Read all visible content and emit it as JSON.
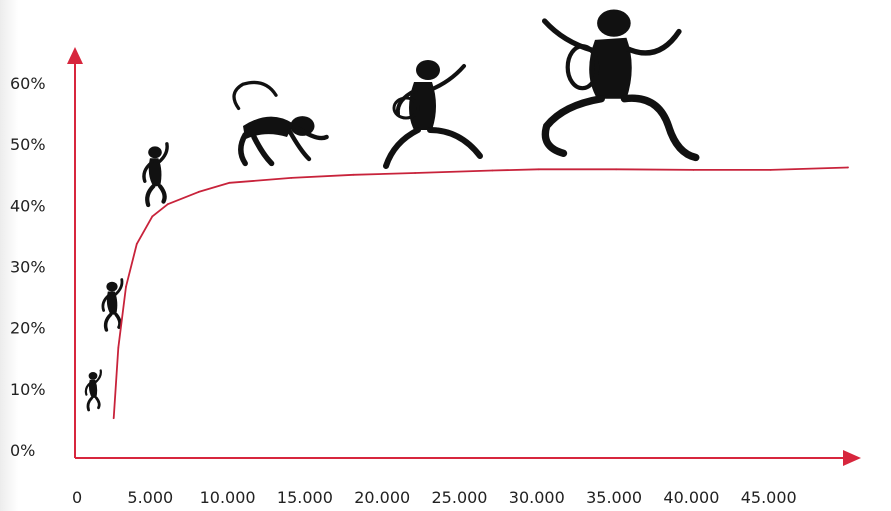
{
  "colors": {
    "axis": "#d7263d",
    "line": "#c8233b",
    "figures": "#111111",
    "text": "#222222"
  },
  "chart_data": {
    "type": "line",
    "title": "",
    "xlabel": "",
    "ylabel": "",
    "xlim": [
      0,
      50000
    ],
    "ylim": [
      0,
      65
    ],
    "x_tick_labels": [
      "0",
      "5.000",
      "10.000",
      "15.000",
      "20.000",
      "25.000",
      "30.000",
      "35.000",
      "40.000",
      "45.000"
    ],
    "x_tick_values": [
      0,
      5000,
      10000,
      15000,
      20000,
      25000,
      30000,
      35000,
      40000,
      45000
    ],
    "y_tick_labels": [
      "0%",
      "10%",
      "20%",
      "30%",
      "40%",
      "50%",
      "60%"
    ],
    "y_tick_values": [
      0,
      10,
      20,
      30,
      40,
      50,
      60
    ],
    "grid": false,
    "decoration": "silhouette-figures-climbing-curve",
    "series": [
      {
        "x": [
          2500,
          2800,
          3300,
          4000,
          5000,
          6000,
          8000,
          10000,
          14000,
          18000,
          22000,
          27000,
          30000,
          35000,
          40000,
          45000,
          50000
        ],
        "values": [
          6.5,
          18,
          28,
          35,
          39.5,
          41.5,
          43.5,
          45,
          45.8,
          46.3,
          46.6,
          47,
          47.2,
          47.2,
          47.1,
          47.1,
          47.5
        ]
      }
    ]
  }
}
